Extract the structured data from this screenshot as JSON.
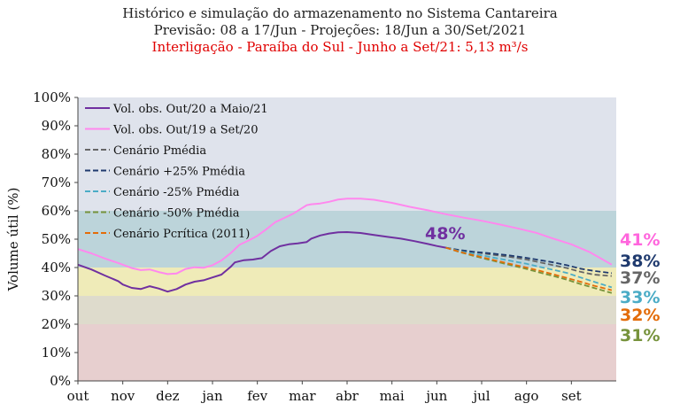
{
  "title_line1": "Histórico e simulação do armazenamento no Sistema Cantareira",
  "title_line2": "Previsão: 08 a 17/Jun - Projeções: 18/Jun a 30/Set/2021",
  "title_line3": "Interligação - Paraíba do Sul - Junho a Set/21: 5,13 m³/s",
  "chart_data": {
    "type": "line",
    "ylabel": "Volume útil (%)",
    "xlabel": "",
    "ylim": [
      0,
      100
    ],
    "yticks": [
      "0%",
      "10%",
      "20%",
      "30%",
      "40%",
      "50%",
      "60%",
      "70%",
      "80%",
      "90%",
      "100%"
    ],
    "xticks": [
      "out",
      "nov",
      "dez",
      "jan",
      "fev",
      "mar",
      "abr",
      "mai",
      "jun",
      "jul",
      "ago",
      "set"
    ],
    "bands": [
      {
        "from": 0,
        "to": 20,
        "color": "#e7cfcf"
      },
      {
        "from": 20,
        "to": 30,
        "color": "#dedbcc"
      },
      {
        "from": 30,
        "to": 40,
        "color": "#efebb8"
      },
      {
        "from": 40,
        "to": 60,
        "color": "#bcd4da"
      },
      {
        "from": 60,
        "to": 100,
        "color": "#dfe3ec"
      }
    ],
    "current_label": "48%",
    "current_label_color": "#7030a0",
    "series": [
      {
        "name": "Vol. obs. Out/20 a Maio/21",
        "color": "#7030a0",
        "dash": false,
        "x": [
          0.0,
          0.3,
          0.6,
          0.9,
          1.0,
          1.2,
          1.4,
          1.6,
          1.8,
          2.0,
          2.2,
          2.4,
          2.6,
          2.8,
          3.0,
          3.2,
          3.4,
          3.5,
          3.7,
          3.9,
          4.0,
          4.1,
          4.3,
          4.5,
          4.7,
          4.9,
          5.1,
          5.2,
          5.4,
          5.6,
          5.8,
          6.0,
          6.3,
          6.6,
          6.9,
          7.2,
          7.5,
          7.8,
          8.0,
          8.2
        ],
        "y": [
          41.0,
          39.3,
          37.2,
          35.2,
          34.0,
          32.8,
          32.4,
          33.4,
          32.6,
          31.5,
          32.4,
          34.0,
          35.0,
          35.5,
          36.5,
          37.5,
          40.2,
          41.8,
          42.6,
          42.8,
          43.1,
          43.3,
          45.8,
          47.5,
          48.2,
          48.5,
          49.0,
          50.2,
          51.3,
          52.0,
          52.4,
          52.5,
          52.2,
          51.5,
          50.8,
          50.2,
          49.3,
          48.3,
          47.6,
          47.0
        ]
      },
      {
        "name": "Vol. obs. Out/19 a Set/20",
        "color": "#ff88ee",
        "dash": false,
        "x": [
          0.0,
          0.3,
          0.6,
          0.9,
          1.2,
          1.4,
          1.6,
          1.8,
          2.0,
          2.2,
          2.4,
          2.6,
          2.8,
          3.0,
          3.2,
          3.4,
          3.6,
          3.8,
          4.0,
          4.2,
          4.4,
          4.6,
          4.8,
          5.0,
          5.1,
          5.2,
          5.4,
          5.6,
          5.8,
          6.0,
          6.3,
          6.6,
          7.0,
          7.4,
          7.8,
          8.2,
          8.6,
          9.0,
          9.4,
          9.8,
          10.2,
          10.6,
          11.0,
          11.4,
          11.9
        ],
        "y": [
          46.5,
          45.0,
          43.2,
          41.6,
          39.8,
          39.1,
          39.3,
          38.4,
          37.7,
          37.9,
          39.5,
          40.1,
          39.9,
          40.8,
          42.5,
          45.0,
          48.0,
          49.5,
          51.2,
          53.5,
          56.0,
          57.5,
          59.0,
          61.0,
          62.0,
          62.3,
          62.6,
          63.2,
          64.0,
          64.3,
          64.3,
          63.9,
          62.8,
          61.4,
          60.2,
          58.8,
          57.6,
          56.5,
          55.2,
          53.8,
          52.3,
          50.2,
          48.2,
          45.5,
          41.0
        ]
      },
      {
        "name": "Cenário Pmédia",
        "color": "#666666",
        "dash": true,
        "x": [
          8.2,
          8.5,
          8.8,
          9.2,
          9.6,
          10.0,
          10.3,
          10.6,
          10.9,
          11.2,
          11.5,
          11.9
        ],
        "y": [
          47.0,
          46.0,
          45.5,
          44.6,
          43.8,
          42.8,
          41.8,
          40.8,
          39.8,
          38.5,
          37.5,
          37.0
        ]
      },
      {
        "name": "Cenário +25% Pmédia",
        "color": "#1f3a6e",
        "dash": true,
        "x": [
          8.2,
          8.5,
          8.8,
          9.2,
          9.6,
          10.0,
          10.3,
          10.6,
          10.9,
          11.2,
          11.5,
          11.9
        ],
        "y": [
          47.0,
          46.2,
          45.6,
          45.0,
          44.3,
          43.4,
          42.6,
          41.8,
          40.8,
          39.6,
          38.8,
          38.0
        ]
      },
      {
        "name": "Cenário -25% Pmédia",
        "color": "#4bacc6",
        "dash": true,
        "x": [
          8.2,
          8.5,
          8.8,
          9.2,
          9.6,
          10.0,
          10.3,
          10.6,
          10.9,
          11.2,
          11.5,
          11.9
        ],
        "y": [
          47.0,
          45.8,
          44.9,
          43.7,
          42.5,
          41.3,
          40.2,
          39.2,
          38.1,
          36.5,
          35.0,
          33.0
        ]
      },
      {
        "name": "Cenário -50% Pmédia",
        "color": "#77933c",
        "dash": true,
        "x": [
          8.2,
          8.5,
          8.8,
          9.2,
          9.6,
          10.0,
          10.3,
          10.6,
          10.9,
          11.2,
          11.5,
          11.9
        ],
        "y": [
          47.0,
          45.5,
          44.2,
          42.6,
          41.0,
          39.5,
          38.2,
          37.0,
          35.7,
          34.2,
          32.8,
          31.0
        ]
      },
      {
        "name": "Cenário Pcrítica (2011)",
        "color": "#e36c09",
        "dash": true,
        "x": [
          8.2,
          8.5,
          8.8,
          9.2,
          9.6,
          10.0,
          10.3,
          10.6,
          10.9,
          11.2,
          11.5,
          11.9
        ],
        "y": [
          47.0,
          45.6,
          44.4,
          42.9,
          41.4,
          40.0,
          38.8,
          37.6,
          36.3,
          35.0,
          33.6,
          32.0
        ]
      }
    ],
    "end_labels": [
      {
        "text": "41%",
        "color": "#ff66dd"
      },
      {
        "text": "38%",
        "color": "#1f3a6e"
      },
      {
        "text": "37%",
        "color": "#666666"
      },
      {
        "text": "33%",
        "color": "#4bacc6"
      },
      {
        "text": "32%",
        "color": "#e36c09"
      },
      {
        "text": "31%",
        "color": "#77933c"
      }
    ]
  }
}
